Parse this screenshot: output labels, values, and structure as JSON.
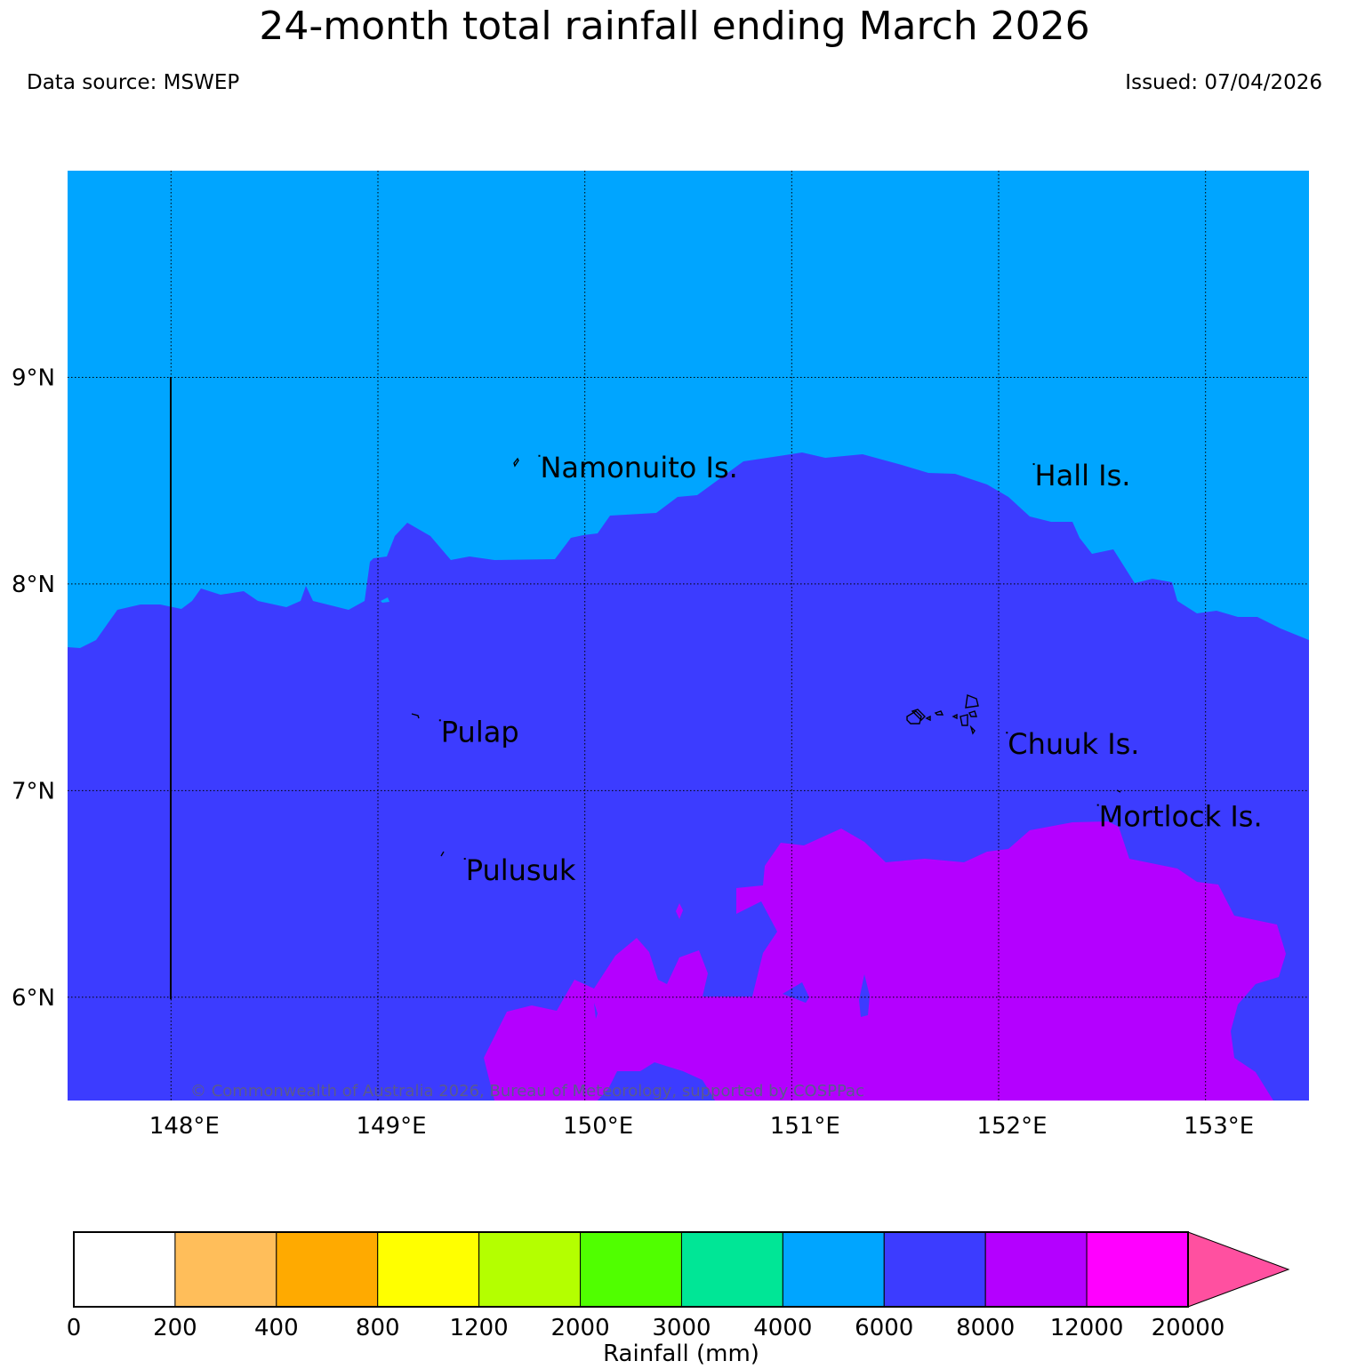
{
  "title": "24-month total rainfall ending March 2026",
  "data_source": "Data source: MSWEP",
  "issued": "Issued: 07/04/2026",
  "copyright": "© Commonwealth of Australia 2026, Bureau of Meteorology, supported by COSPPac",
  "map": {
    "lon_range": [
      147.5,
      153.5
    ],
    "lat_range": [
      5.5,
      10.0
    ],
    "lon_ticks": [
      {
        "value": 148,
        "label": "148°E"
      },
      {
        "value": 149,
        "label": "149°E"
      },
      {
        "value": 150,
        "label": "150°E"
      },
      {
        "value": 151,
        "label": "151°E"
      },
      {
        "value": 152,
        "label": "152°E"
      },
      {
        "value": 153,
        "label": "153°E"
      }
    ],
    "lat_ticks": [
      {
        "value": 6,
        "label": "6°N"
      },
      {
        "value": 7,
        "label": "7°N"
      },
      {
        "value": 8,
        "label": "8°N"
      },
      {
        "value": 9,
        "label": "9°N"
      }
    ],
    "gridlines": "dotted",
    "places": [
      {
        "name": "Namonuito Is.",
        "lon": 149.78,
        "lat": 8.62
      },
      {
        "name": "Hall Is.",
        "lon": 152.17,
        "lat": 8.58
      },
      {
        "name": "Pulap",
        "lon": 149.3,
        "lat": 7.34
      },
      {
        "name": "Chuuk Is.",
        "lon": 152.04,
        "lat": 7.28
      },
      {
        "name": "Mortlock Is.",
        "lon": 152.48,
        "lat": 6.93
      },
      {
        "name": "Pulusuk",
        "lon": 149.42,
        "lat": 6.67
      }
    ],
    "rainfall_zones": [
      {
        "range": "4000-6000 mm",
        "color": "#00a5ff",
        "extent": "north of approx. 7.7-8.6°N"
      },
      {
        "range": "6000-8000 mm",
        "color": "#3c3cff",
        "extent": "central band"
      },
      {
        "range": "8000-12000 mm",
        "color": "#b400ff",
        "extent": "south-east, south of approx. 6.8°N east of 149.7°E"
      }
    ]
  },
  "colorbar": {
    "label": "Rainfall (mm)",
    "ticks": [
      "0",
      "200",
      "400",
      "800",
      "1200",
      "2000",
      "3000",
      "4000",
      "6000",
      "8000",
      "12000",
      "20000"
    ],
    "colors": [
      "#ffffff",
      "#ffbe5a",
      "#ffaa00",
      "#ffff00",
      "#b4ff00",
      "#50ff00",
      "#00e696",
      "#00a5ff",
      "#3c3cff",
      "#b400ff",
      "#ff00ff"
    ],
    "extend_color": "#ff50a0"
  }
}
